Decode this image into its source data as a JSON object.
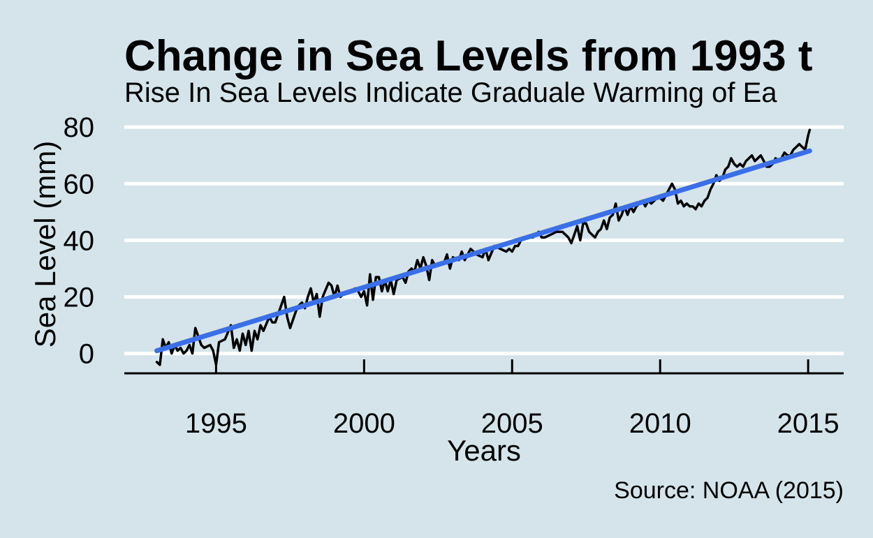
{
  "chart_data": {
    "type": "line",
    "title": "Change in Sea Levels from 1993 t",
    "subtitle": "Rise In Sea Levels Indicate Graduale Warming of Ea",
    "xlabel": "Years",
    "ylabel": "Sea Level (mm)",
    "caption": "Source: NOAA (2015)",
    "xlim": [
      1991.9,
      2016.2
    ],
    "ylim": [
      -7,
      83
    ],
    "x_ticks": [
      1995,
      2000,
      2005,
      2010,
      2015
    ],
    "y_ticks": [
      0,
      20,
      40,
      60,
      80
    ],
    "grid": "horizontal",
    "legend": "none",
    "series": [
      {
        "style": "line",
        "color": "#000000",
        "points": [
          [
            1993.0,
            -3
          ],
          [
            1993.1,
            -4
          ],
          [
            1993.2,
            5
          ],
          [
            1993.3,
            2
          ],
          [
            1993.4,
            4
          ],
          [
            1993.5,
            0
          ],
          [
            1993.6,
            3
          ],
          [
            1993.7,
            1
          ],
          [
            1993.8,
            2
          ],
          [
            1993.9,
            0
          ],
          [
            1994.0,
            1
          ],
          [
            1994.1,
            3
          ],
          [
            1994.2,
            0
          ],
          [
            1994.3,
            9
          ],
          [
            1994.4,
            6
          ],
          [
            1994.5,
            3
          ],
          [
            1994.6,
            2
          ],
          [
            1994.8,
            3
          ],
          [
            1994.9,
            1
          ],
          [
            1995.0,
            -4
          ],
          [
            1995.1,
            4
          ],
          [
            1995.3,
            5
          ],
          [
            1995.5,
            10
          ],
          [
            1995.6,
            2
          ],
          [
            1995.7,
            5
          ],
          [
            1995.8,
            1
          ],
          [
            1995.9,
            7
          ],
          [
            1996.0,
            3
          ],
          [
            1996.1,
            8
          ],
          [
            1996.2,
            1
          ],
          [
            1996.3,
            8
          ],
          [
            1996.4,
            5
          ],
          [
            1996.5,
            10
          ],
          [
            1996.6,
            8
          ],
          [
            1996.8,
            13
          ],
          [
            1996.9,
            11
          ],
          [
            1997.0,
            11
          ],
          [
            1997.1,
            14
          ],
          [
            1997.3,
            20
          ],
          [
            1997.4,
            13
          ],
          [
            1997.5,
            9
          ],
          [
            1997.6,
            12
          ],
          [
            1997.7,
            15
          ],
          [
            1997.8,
            17
          ],
          [
            1997.9,
            18
          ],
          [
            1998.0,
            16
          ],
          [
            1998.1,
            20
          ],
          [
            1998.2,
            23
          ],
          [
            1998.3,
            18
          ],
          [
            1998.4,
            21
          ],
          [
            1998.5,
            13
          ],
          [
            1998.6,
            20
          ],
          [
            1998.8,
            25
          ],
          [
            1998.9,
            24
          ],
          [
            1999.0,
            20
          ],
          [
            1999.1,
            24
          ],
          [
            1999.2,
            20
          ],
          [
            1999.3,
            21
          ],
          [
            1999.5,
            22
          ],
          [
            1999.7,
            23
          ],
          [
            1999.8,
            22
          ],
          [
            1999.9,
            20
          ],
          [
            2000.0,
            22
          ],
          [
            2000.1,
            17
          ],
          [
            2000.2,
            28
          ],
          [
            2000.3,
            19
          ],
          [
            2000.4,
            27
          ],
          [
            2000.5,
            27
          ],
          [
            2000.6,
            22
          ],
          [
            2000.7,
            26
          ],
          [
            2000.8,
            22
          ],
          [
            2000.9,
            26
          ],
          [
            2001.0,
            21
          ],
          [
            2001.1,
            26
          ],
          [
            2001.3,
            27
          ],
          [
            2001.4,
            25
          ],
          [
            2001.5,
            29
          ],
          [
            2001.6,
            30
          ],
          [
            2001.7,
            29
          ],
          [
            2001.8,
            33
          ],
          [
            2001.9,
            30
          ],
          [
            2002.0,
            34
          ],
          [
            2002.1,
            31
          ],
          [
            2002.2,
            26
          ],
          [
            2002.3,
            33
          ],
          [
            2002.4,
            31
          ],
          [
            2002.6,
            32
          ],
          [
            2002.7,
            32
          ],
          [
            2002.8,
            35
          ],
          [
            2002.9,
            30
          ],
          [
            2003.0,
            34
          ],
          [
            2003.2,
            33
          ],
          [
            2003.3,
            36
          ],
          [
            2003.4,
            33
          ],
          [
            2003.6,
            37
          ],
          [
            2003.8,
            35
          ],
          [
            2004.0,
            34
          ],
          [
            2004.1,
            37
          ],
          [
            2004.2,
            33
          ],
          [
            2004.4,
            38
          ],
          [
            2004.6,
            37
          ],
          [
            2004.8,
            36
          ],
          [
            2004.9,
            37
          ],
          [
            2005.0,
            36
          ],
          [
            2005.1,
            38
          ],
          [
            2005.2,
            38
          ],
          [
            2005.3,
            40
          ],
          [
            2005.5,
            41
          ],
          [
            2005.7,
            41
          ],
          [
            2005.9,
            43
          ],
          [
            2006.0,
            41
          ],
          [
            2006.1,
            41
          ],
          [
            2006.3,
            42
          ],
          [
            2006.5,
            43
          ],
          [
            2006.7,
            43
          ],
          [
            2006.9,
            41
          ],
          [
            2007.0,
            39
          ],
          [
            2007.1,
            42
          ],
          [
            2007.2,
            45
          ],
          [
            2007.3,
            40
          ],
          [
            2007.4,
            46
          ],
          [
            2007.5,
            46
          ],
          [
            2007.6,
            43
          ],
          [
            2007.7,
            42
          ],
          [
            2007.8,
            41
          ],
          [
            2007.9,
            43
          ],
          [
            2008.0,
            44
          ],
          [
            2008.1,
            47
          ],
          [
            2008.2,
            44
          ],
          [
            2008.3,
            48
          ],
          [
            2008.4,
            49
          ],
          [
            2008.5,
            53
          ],
          [
            2008.6,
            47
          ],
          [
            2008.7,
            49
          ],
          [
            2008.8,
            52
          ],
          [
            2008.9,
            49
          ],
          [
            2009.0,
            52
          ],
          [
            2009.1,
            50
          ],
          [
            2009.2,
            52
          ],
          [
            2009.3,
            53
          ],
          [
            2009.4,
            54
          ],
          [
            2009.5,
            52
          ],
          [
            2009.6,
            54
          ],
          [
            2009.7,
            53
          ],
          [
            2009.8,
            54
          ],
          [
            2009.9,
            55
          ],
          [
            2010.0,
            55
          ],
          [
            2010.1,
            54
          ],
          [
            2010.2,
            56
          ],
          [
            2010.3,
            58
          ],
          [
            2010.4,
            60
          ],
          [
            2010.5,
            58
          ],
          [
            2010.6,
            53
          ],
          [
            2010.7,
            54
          ],
          [
            2010.8,
            52
          ],
          [
            2010.9,
            53
          ],
          [
            2011.0,
            52
          ],
          [
            2011.1,
            52
          ],
          [
            2011.2,
            51
          ],
          [
            2011.3,
            53
          ],
          [
            2011.4,
            52
          ],
          [
            2011.5,
            54
          ],
          [
            2011.6,
            55
          ],
          [
            2011.7,
            58
          ],
          [
            2011.8,
            60
          ],
          [
            2011.9,
            63
          ],
          [
            2012.0,
            61
          ],
          [
            2012.1,
            62
          ],
          [
            2012.2,
            65
          ],
          [
            2012.3,
            66
          ],
          [
            2012.4,
            69
          ],
          [
            2012.5,
            67
          ],
          [
            2012.6,
            66
          ],
          [
            2012.7,
            67
          ],
          [
            2012.8,
            66
          ],
          [
            2012.9,
            68
          ],
          [
            2013.0,
            69
          ],
          [
            2013.1,
            70
          ],
          [
            2013.2,
            68
          ],
          [
            2013.3,
            69
          ],
          [
            2013.4,
            70
          ],
          [
            2013.5,
            68
          ],
          [
            2013.6,
            66
          ],
          [
            2013.7,
            66
          ],
          [
            2013.8,
            67
          ],
          [
            2013.9,
            69
          ],
          [
            2014.0,
            68
          ],
          [
            2014.1,
            69
          ],
          [
            2014.2,
            71
          ],
          [
            2014.3,
            70
          ],
          [
            2014.4,
            70
          ],
          [
            2014.5,
            72
          ],
          [
            2014.6,
            73
          ],
          [
            2014.7,
            74
          ],
          [
            2014.8,
            73
          ],
          [
            2014.9,
            72
          ],
          [
            2015.0,
            77
          ],
          [
            2015.05,
            79
          ]
        ]
      },
      {
        "style": "trend",
        "color": "#3a6fe8",
        "points": [
          [
            1993.0,
            1
          ],
          [
            2015.05,
            71.6
          ]
        ]
      }
    ]
  }
}
